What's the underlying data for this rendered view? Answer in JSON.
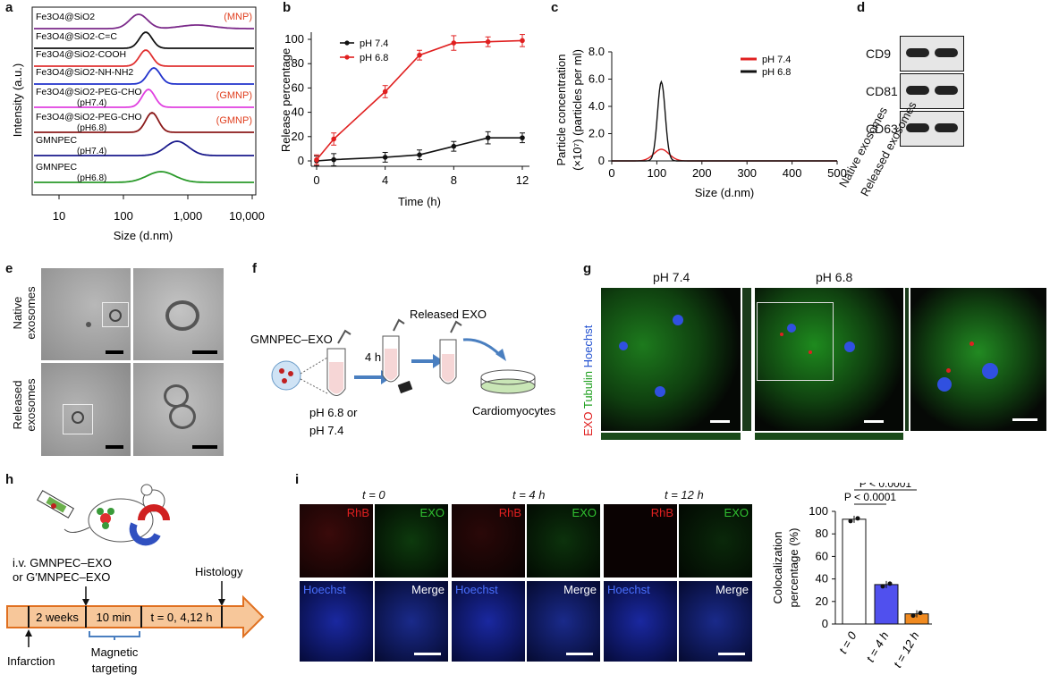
{
  "panels": {
    "a": "a",
    "b": "b",
    "c": "c",
    "d": "d",
    "e": "e",
    "f": "f",
    "g": "g",
    "h": "h",
    "i": "i"
  },
  "panel_a": {
    "ylabel": "Intensity (a.u.)",
    "xlabel": "Size (d.nm)",
    "xticks": [
      "10",
      "100",
      "1,000",
      "10,000"
    ],
    "curves": [
      {
        "label": "Fe3O4@SiO2",
        "tag": "(MNP)",
        "color": "#7b2a8a"
      },
      {
        "label": "Fe3O4@SiO2-C=C",
        "tag": "",
        "color": "#111111"
      },
      {
        "label": "Fe3O4@SiO2-COOH",
        "tag": "",
        "color": "#e03030"
      },
      {
        "label": "Fe3O4@SiO2-NH-NH2",
        "tag": "",
        "color": "#2233cc"
      },
      {
        "label": "Fe3O4@SiO2-PEG-CHO",
        "sub": "(pH7.4)",
        "tag": "(GMNP)",
        "color": "#e040e0"
      },
      {
        "label": "Fe3O4@SiO2-PEG-CHO",
        "sub": "(pH6.8)",
        "tag": "(GMNP)",
        "color": "#8b1a1a"
      },
      {
        "label": "GMNPEC",
        "sub": "(pH7.4)",
        "tag": "",
        "color": "#1a1a8c"
      },
      {
        "label": "GMNPEC",
        "sub": "(pH6.8)",
        "tag": "",
        "color": "#2a9a2a"
      }
    ],
    "tag_color": "#e04020"
  },
  "chart_data": [
    {
      "type": "line",
      "panel": "b",
      "xlabel": "Time (h)",
      "ylabel": "Release percentage",
      "xlim": [
        0,
        12
      ],
      "ylim": [
        0,
        100
      ],
      "xticks": [
        "0",
        "4",
        "8",
        "12"
      ],
      "yticks": [
        "0",
        "20",
        "40",
        "60",
        "80",
        "100"
      ],
      "series": [
        {
          "name": "pH 7.4",
          "color": "#111111",
          "x": [
            0,
            1,
            4,
            6,
            8,
            10,
            12
          ],
          "y": [
            0,
            1,
            3,
            5,
            12,
            19,
            19
          ],
          "err": [
            4,
            5,
            4,
            4,
            4,
            5,
            4
          ]
        },
        {
          "name": "pH 6.8",
          "color": "#e02020",
          "x": [
            0,
            1,
            4,
            6,
            8,
            10,
            12
          ],
          "y": [
            1,
            18,
            57,
            87,
            97,
            98,
            99
          ],
          "err": [
            4,
            5,
            5,
            4,
            6,
            4,
            5
          ]
        }
      ]
    },
    {
      "type": "line",
      "panel": "c",
      "xlabel": "Size (d.nm)",
      "ylabel": "Particle concentration",
      "ylabel2": "(×10⁷) (particles per ml)",
      "xlim": [
        0,
        500
      ],
      "ylim": [
        0,
        8
      ],
      "xticks": [
        "0",
        "100",
        "200",
        "300",
        "400",
        "500"
      ],
      "yticks": [
        "0",
        "2.0",
        "4.0",
        "6.0",
        "8.0"
      ],
      "series": [
        {
          "name": "pH 7.4",
          "color": "#e02020",
          "peak_x": 110,
          "peak_y": 0.85
        },
        {
          "name": "pH 6.8",
          "color": "#111111",
          "peak_x": 110,
          "peak_y": 5.8
        }
      ]
    },
    {
      "type": "bar",
      "panel": "i",
      "ylabel": "Colocalization",
      "ylabel2": "percentage (%)",
      "categories": [
        "t = 0",
        "t = 4 h",
        "t = 12 h"
      ],
      "values": [
        93,
        35,
        9
      ],
      "colors": [
        "#ffffff",
        "#5050ee",
        "#f08a20"
      ],
      "ylim": [
        0,
        100
      ],
      "yticks": [
        "0",
        "20",
        "40",
        "60",
        "80",
        "100"
      ],
      "annotations": [
        "P < 0.0001",
        "P < 0.0001"
      ]
    }
  ],
  "panel_d": {
    "rows": [
      "CD9",
      "CD81",
      "CD63"
    ],
    "columns": [
      "Native exosomes",
      "Released exosomes"
    ]
  },
  "panel_e": {
    "rows": [
      "Native",
      "exosomes",
      "Released",
      "exosomes"
    ]
  },
  "panel_f": {
    "complex_label": "GMNPEC–EXO",
    "time": "4 h",
    "ph": "pH 6.8 or",
    "ph2": "pH 7.4",
    "released": "Released EXO",
    "target": "Cardiomyocytes"
  },
  "panel_g": {
    "col1": "pH 7.4",
    "col2": "pH 6.8",
    "side_exo": "EXO",
    "side_tub": "Tubulin",
    "side_hoe": "Hoechst"
  },
  "panel_h": {
    "inj1": "i.v. GMNPEC–EXO",
    "inj2": "or G′MNPEC–EXO",
    "histology": "Histology",
    "seg1": "2 weeks",
    "seg2": "10 min",
    "seg3": "t = 0, 4,12 h",
    "infarction": "Infarction",
    "magnetic": "Magnetic",
    "targeting": "targeting"
  },
  "panel_i": {
    "times": [
      "t = 0",
      "t = 4 h",
      "t = 12 h"
    ],
    "rhb": "RhB",
    "exo": "EXO",
    "hoechst": "Hoechst",
    "merge": "Merge"
  }
}
